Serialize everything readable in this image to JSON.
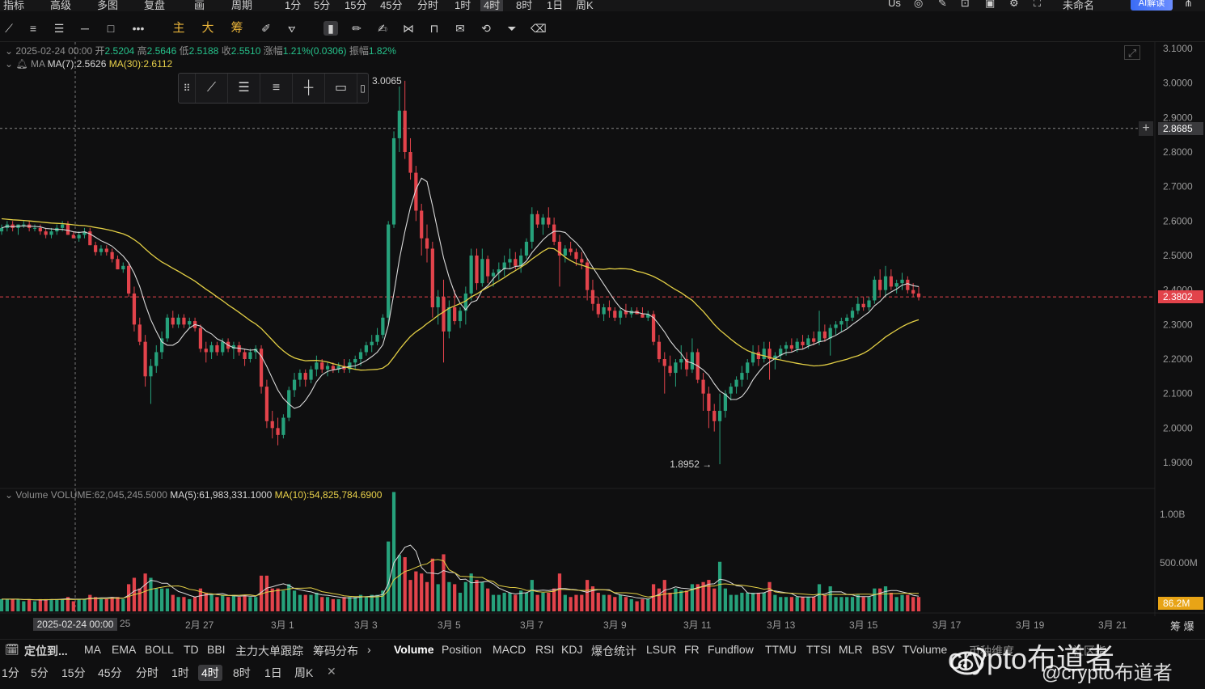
{
  "topbar": {
    "items": [
      "指标",
      "高级",
      "多图",
      "复盘",
      "画",
      "周期",
      "1分",
      "5分",
      "15分",
      "45分",
      "分时",
      "1时",
      "4时",
      "8时",
      "1日",
      "周K"
    ],
    "active": "4时",
    "right_items": [
      "Us",
      "未命名"
    ],
    "ai_label": "AI解读"
  },
  "toolbar": {
    "yellow_labels": [
      "主",
      "大",
      "筹"
    ]
  },
  "ohlc_legend": {
    "date": "2025-02-24 00:00",
    "open_label": "开",
    "open": "2.5204",
    "high_label": "高",
    "high": "2.5646",
    "low_label": "低",
    "low": "2.5188",
    "close_label": "收",
    "close": "2.5510",
    "change_label": "涨幅",
    "change": "1.21%(0.0306)",
    "amp_label": "振幅",
    "amp": "1.82%"
  },
  "ma_legend": {
    "name": "MA",
    "ma7": "MA(7):2.5626",
    "ma30": "MA(30):2.6112"
  },
  "volume_legend": {
    "name": "Volume",
    "volume": "VOLUME:62,045,245.5000",
    "ma5": "MA(5):61,983,331.1000",
    "ma10": "MA(10):54,825,784.6900"
  },
  "price_axis": {
    "ticks": [
      "3.1000",
      "3.0000",
      "2.9000",
      "2.8000",
      "2.7000",
      "2.6000",
      "2.5000",
      "2.4000",
      "2.3000",
      "2.2000",
      "2.1000",
      "2.0000",
      "1.9000"
    ],
    "crosshair_price": "2.8685",
    "last_price": "2.3802"
  },
  "volume_axis": {
    "ticks": [
      "1.00B",
      "500.00M"
    ],
    "last_volume": "86.2M"
  },
  "annotations": {
    "high": "3.0065",
    "low": "1.8952"
  },
  "x_axis": {
    "cursor_date": "2025-02-24 00:00",
    "labels": [
      "25",
      "2月 27",
      "3月 1",
      "3月 3",
      "3月 5",
      "3月 7",
      "3月 9",
      "3月 11",
      "3月 13",
      "3月 15",
      "3月 17",
      "3月 19",
      "3月 21"
    ],
    "right_label": "筹 爆"
  },
  "indicator_bar": {
    "left_label": "定位到...",
    "main": [
      "MA",
      "EMA",
      "BOLL",
      "TD",
      "BBI",
      "主力大单跟踪",
      "筹码分布"
    ],
    "sub": [
      "Volume",
      "Position",
      "MACD",
      "RSI",
      "KDJ",
      "爆仓统计",
      "LSUR",
      "FR",
      "Fundflow",
      "TTMU",
      "TTSI",
      "MLR",
      "BSV",
      "TVolume",
      "币种维度",
      "社区指"
    ]
  },
  "timeframe_bar": {
    "items": [
      "1分",
      "5分",
      "15分",
      "45分",
      "分时",
      "1时",
      "4时",
      "8时",
      "1日",
      "周K"
    ],
    "active": "4时"
  },
  "watermark": {
    "line1": "crypto布道者",
    "line2": "@crypto布道者"
  },
  "colors": {
    "up": "#26a17b",
    "down": "#e2434b",
    "ma7": "#d9d9d9",
    "ma30": "#e3cf45",
    "background": "#0f0f10"
  },
  "chart_data": {
    "type": "candlestick",
    "timeframe": "4H",
    "ohlc": [
      [
        2.57,
        2.59,
        2.56,
        2.58
      ],
      [
        2.58,
        2.6,
        2.57,
        2.59
      ],
      [
        2.59,
        2.6,
        2.57,
        2.58
      ],
      [
        2.58,
        2.59,
        2.56,
        2.59
      ],
      [
        2.59,
        2.6,
        2.58,
        2.59
      ],
      [
        2.59,
        2.6,
        2.57,
        2.58
      ],
      [
        2.58,
        2.59,
        2.57,
        2.58
      ],
      [
        2.58,
        2.59,
        2.56,
        2.57
      ],
      [
        2.57,
        2.58,
        2.55,
        2.56
      ],
      [
        2.56,
        2.58,
        2.55,
        2.57
      ],
      [
        2.57,
        2.59,
        2.56,
        2.58
      ],
      [
        2.58,
        2.6,
        2.57,
        2.59
      ],
      [
        2.59,
        2.6,
        2.56,
        2.56
      ],
      [
        2.56,
        2.57,
        2.55,
        2.55
      ],
      [
        2.55,
        2.57,
        2.54,
        2.56
      ],
      [
        2.56,
        2.58,
        2.55,
        2.57
      ],
      [
        2.57,
        2.58,
        2.53,
        2.53
      ],
      [
        2.53,
        2.54,
        2.5,
        2.51
      ],
      [
        2.51,
        2.53,
        2.5,
        2.52
      ],
      [
        2.52,
        2.53,
        2.5,
        2.51
      ],
      [
        2.51,
        2.52,
        2.48,
        2.49
      ],
      [
        2.49,
        2.5,
        2.46,
        2.46
      ],
      [
        2.46,
        2.48,
        2.45,
        2.47
      ],
      [
        2.47,
        2.48,
        2.38,
        2.39
      ],
      [
        2.39,
        2.41,
        2.28,
        2.3
      ],
      [
        2.3,
        2.32,
        2.24,
        2.25
      ],
      [
        2.25,
        2.27,
        2.12,
        2.15
      ],
      [
        2.15,
        2.2,
        2.07,
        2.18
      ],
      [
        2.18,
        2.24,
        2.16,
        2.22
      ],
      [
        2.22,
        2.28,
        2.2,
        2.26
      ],
      [
        2.26,
        2.33,
        2.25,
        2.32
      ],
      [
        2.32,
        2.34,
        2.29,
        2.3
      ],
      [
        2.3,
        2.33,
        2.29,
        2.32
      ],
      [
        2.32,
        2.33,
        2.29,
        2.3
      ],
      [
        2.3,
        2.32,
        2.29,
        2.31
      ],
      [
        2.31,
        2.32,
        2.28,
        2.29
      ],
      [
        2.29,
        2.3,
        2.22,
        2.23
      ],
      [
        2.23,
        2.25,
        2.19,
        2.22
      ],
      [
        2.22,
        2.25,
        2.2,
        2.24
      ],
      [
        2.24,
        2.25,
        2.21,
        2.22
      ],
      [
        2.22,
        2.26,
        2.21,
        2.25
      ],
      [
        2.25,
        2.26,
        2.22,
        2.23
      ],
      [
        2.23,
        2.25,
        2.2,
        2.24
      ],
      [
        2.24,
        2.25,
        2.21,
        2.22
      ],
      [
        2.22,
        2.23,
        2.18,
        2.2
      ],
      [
        2.2,
        2.23,
        2.19,
        2.22
      ],
      [
        2.22,
        2.24,
        2.2,
        2.23
      ],
      [
        2.23,
        2.24,
        2.1,
        2.12
      ],
      [
        2.12,
        2.14,
        2.0,
        2.02
      ],
      [
        2.02,
        2.05,
        1.97,
        2.0
      ],
      [
        2.0,
        2.03,
        1.95,
        1.98
      ],
      [
        1.98,
        2.04,
        1.97,
        2.03
      ],
      [
        2.03,
        2.12,
        2.02,
        2.11
      ],
      [
        2.11,
        2.16,
        2.09,
        2.14
      ],
      [
        2.14,
        2.17,
        2.12,
        2.16
      ],
      [
        2.16,
        2.17,
        2.12,
        2.14
      ],
      [
        2.14,
        2.18,
        2.13,
        2.17
      ],
      [
        2.17,
        2.21,
        2.15,
        2.19
      ],
      [
        2.19,
        2.2,
        2.16,
        2.17
      ],
      [
        2.17,
        2.19,
        2.15,
        2.18
      ],
      [
        2.18,
        2.19,
        2.16,
        2.17
      ],
      [
        2.17,
        2.19,
        2.16,
        2.18
      ],
      [
        2.18,
        2.2,
        2.16,
        2.17
      ],
      [
        2.17,
        2.2,
        2.16,
        2.19
      ],
      [
        2.19,
        2.21,
        2.17,
        2.2
      ],
      [
        2.2,
        2.23,
        2.18,
        2.22
      ],
      [
        2.22,
        2.25,
        2.21,
        2.24
      ],
      [
        2.24,
        2.27,
        2.22,
        2.25
      ],
      [
        2.25,
        2.29,
        2.24,
        2.27
      ],
      [
        2.27,
        2.33,
        2.26,
        2.32
      ],
      [
        2.32,
        2.6,
        2.3,
        2.59
      ],
      [
        2.59,
        2.86,
        2.58,
        2.84
      ],
      [
        2.84,
        2.99,
        2.8,
        2.92
      ],
      [
        2.92,
        3.0065,
        2.78,
        2.8
      ],
      [
        2.8,
        2.84,
        2.72,
        2.74
      ],
      [
        2.74,
        2.76,
        2.6,
        2.63
      ],
      [
        2.63,
        2.65,
        2.5,
        2.55
      ],
      [
        2.55,
        2.59,
        2.48,
        2.52
      ],
      [
        2.52,
        2.54,
        2.32,
        2.35
      ],
      [
        2.35,
        2.4,
        2.3,
        2.38
      ],
      [
        2.38,
        2.43,
        2.19,
        2.28
      ],
      [
        2.28,
        2.37,
        2.26,
        2.35
      ],
      [
        2.35,
        2.4,
        2.3,
        2.31
      ],
      [
        2.31,
        2.35,
        2.29,
        2.34
      ],
      [
        2.34,
        2.41,
        2.3,
        2.39
      ],
      [
        2.39,
        2.52,
        2.37,
        2.5
      ],
      [
        2.5,
        2.52,
        2.4,
        2.42
      ],
      [
        2.42,
        2.52,
        2.41,
        2.49
      ],
      [
        2.49,
        2.5,
        2.42,
        2.44
      ],
      [
        2.44,
        2.46,
        2.41,
        2.45
      ],
      [
        2.45,
        2.48,
        2.43,
        2.46
      ],
      [
        2.46,
        2.5,
        2.44,
        2.48
      ],
      [
        2.48,
        2.52,
        2.46,
        2.49
      ],
      [
        2.49,
        2.51,
        2.46,
        2.47
      ],
      [
        2.47,
        2.52,
        2.45,
        2.5
      ],
      [
        2.5,
        2.55,
        2.49,
        2.54
      ],
      [
        2.54,
        2.64,
        2.52,
        2.62
      ],
      [
        2.62,
        2.63,
        2.58,
        2.59
      ],
      [
        2.59,
        2.62,
        2.56,
        2.61
      ],
      [
        2.61,
        2.64,
        2.58,
        2.59
      ],
      [
        2.59,
        2.61,
        2.53,
        2.54
      ],
      [
        2.54,
        2.56,
        2.41,
        2.5
      ],
      [
        2.5,
        2.53,
        2.48,
        2.52
      ],
      [
        2.52,
        2.54,
        2.5,
        2.51
      ],
      [
        2.51,
        2.52,
        2.47,
        2.49
      ],
      [
        2.49,
        2.51,
        2.46,
        2.48
      ],
      [
        2.48,
        2.49,
        2.37,
        2.4
      ],
      [
        2.4,
        2.43,
        2.34,
        2.36
      ],
      [
        2.36,
        2.38,
        2.32,
        2.33
      ],
      [
        2.33,
        2.36,
        2.31,
        2.35
      ],
      [
        2.35,
        2.37,
        2.32,
        2.34
      ],
      [
        2.34,
        2.35,
        2.31,
        2.32
      ],
      [
        2.32,
        2.35,
        2.3,
        2.34
      ],
      [
        2.34,
        2.36,
        2.32,
        2.33
      ],
      [
        2.33,
        2.35,
        2.32,
        2.34
      ],
      [
        2.34,
        2.35,
        2.33,
        2.33
      ],
      [
        2.33,
        2.35,
        2.32,
        2.32
      ],
      [
        2.32,
        2.34,
        2.31,
        2.33
      ],
      [
        2.33,
        2.34,
        2.24,
        2.25
      ],
      [
        2.25,
        2.27,
        2.19,
        2.2
      ],
      [
        2.2,
        2.22,
        2.1,
        2.18
      ],
      [
        2.18,
        2.21,
        2.15,
        2.16
      ],
      [
        2.16,
        2.2,
        2.12,
        2.19
      ],
      [
        2.19,
        2.24,
        2.17,
        2.2
      ],
      [
        2.2,
        2.22,
        2.15,
        2.17
      ],
      [
        2.17,
        2.26,
        2.16,
        2.22
      ],
      [
        2.22,
        2.23,
        2.13,
        2.14
      ],
      [
        2.14,
        2.16,
        2.05,
        2.1
      ],
      [
        2.1,
        2.12,
        2.0,
        2.05
      ],
      [
        2.05,
        2.07,
        1.99,
        2.02
      ],
      [
        2.02,
        2.1,
        1.8952,
        2.05
      ],
      [
        2.05,
        2.11,
        2.03,
        2.1
      ],
      [
        2.1,
        2.13,
        2.08,
        2.12
      ],
      [
        2.12,
        2.15,
        2.1,
        2.14
      ],
      [
        2.14,
        2.18,
        2.12,
        2.16
      ],
      [
        2.16,
        2.2,
        2.14,
        2.19
      ],
      [
        2.19,
        2.24,
        2.18,
        2.22
      ],
      [
        2.22,
        2.24,
        2.18,
        2.2
      ],
      [
        2.2,
        2.25,
        2.19,
        2.23
      ],
      [
        2.23,
        2.25,
        2.14,
        2.2
      ],
      [
        2.2,
        2.22,
        2.17,
        2.21
      ],
      [
        2.21,
        2.24,
        2.2,
        2.23
      ],
      [
        2.23,
        2.25,
        2.21,
        2.24
      ],
      [
        2.24,
        2.26,
        2.22,
        2.23
      ],
      [
        2.23,
        2.26,
        2.22,
        2.25
      ],
      [
        2.25,
        2.27,
        2.23,
        2.24
      ],
      [
        2.24,
        2.27,
        2.23,
        2.26
      ],
      [
        2.26,
        2.28,
        2.24,
        2.25
      ],
      [
        2.25,
        2.34,
        2.24,
        2.28
      ],
      [
        2.28,
        2.3,
        2.25,
        2.26
      ],
      [
        2.26,
        2.3,
        2.21,
        2.29
      ],
      [
        2.29,
        2.31,
        2.27,
        2.3
      ],
      [
        2.3,
        2.32,
        2.28,
        2.31
      ],
      [
        2.31,
        2.33,
        2.29,
        2.32
      ],
      [
        2.32,
        2.35,
        2.31,
        2.34
      ],
      [
        2.34,
        2.38,
        2.33,
        2.36
      ],
      [
        2.36,
        2.38,
        2.34,
        2.35
      ],
      [
        2.35,
        2.38,
        2.34,
        2.37
      ],
      [
        2.37,
        2.44,
        2.36,
        2.43
      ],
      [
        2.43,
        2.46,
        2.38,
        2.4
      ],
      [
        2.4,
        2.47,
        2.38,
        2.44
      ],
      [
        2.44,
        2.46,
        2.4,
        2.41
      ],
      [
        2.41,
        2.43,
        2.39,
        2.42
      ],
      [
        2.42,
        2.45,
        2.4,
        2.43
      ],
      [
        2.43,
        2.44,
        2.39,
        2.4
      ],
      [
        2.4,
        2.42,
        2.38,
        2.39
      ],
      [
        2.39,
        2.41,
        2.37,
        2.3802
      ]
    ],
    "volume_range": [
      0,
      1300000000
    ],
    "price_range": [
      1.85,
      3.11
    ]
  }
}
